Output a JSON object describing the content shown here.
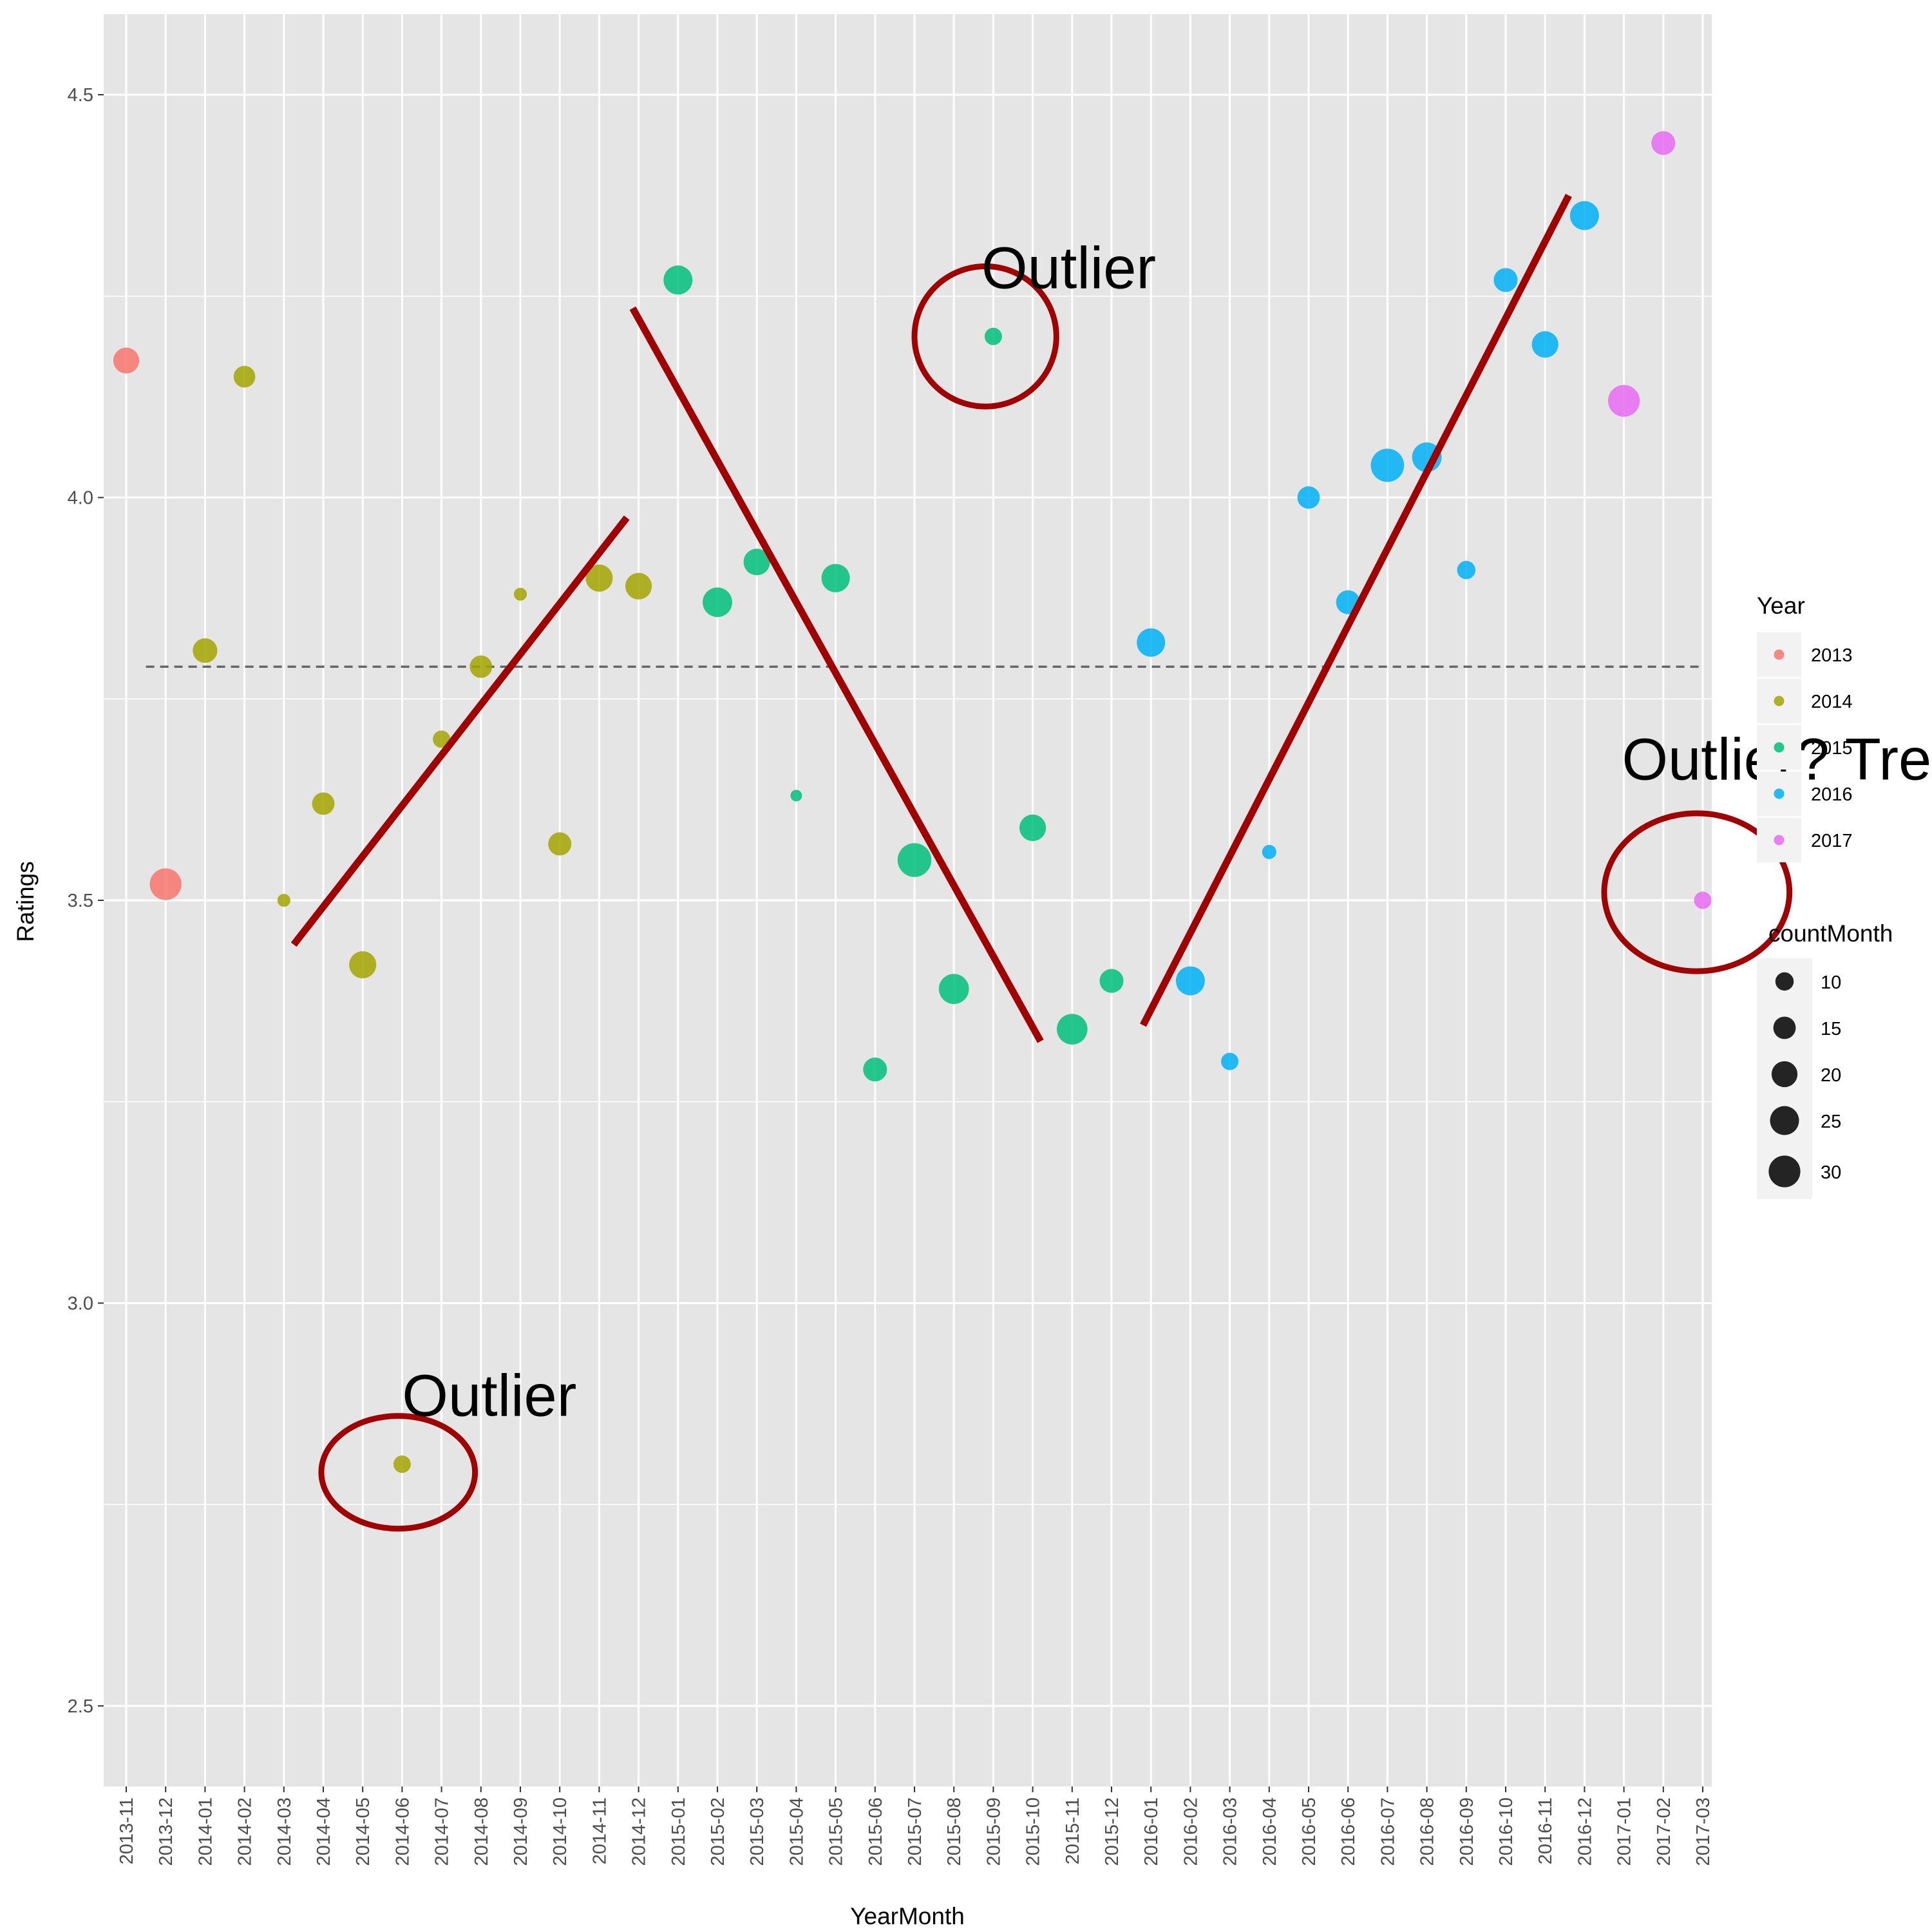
{
  "chart_data": {
    "type": "scatter",
    "xlabel": "YearMonth",
    "ylabel": "Ratings",
    "ylim": [
      2.4,
      4.6
    ],
    "yticks": [
      2.5,
      3.0,
      3.5,
      4.0,
      4.5
    ],
    "ytick_labels": [
      "2.5",
      "3.0",
      "3.5",
      "4.0",
      "4.5"
    ],
    "categories": [
      "2013-11",
      "2013-12",
      "2014-01",
      "2014-02",
      "2014-03",
      "2014-04",
      "2014-05",
      "2014-06",
      "2014-07",
      "2014-08",
      "2014-09",
      "2014-10",
      "2014-11",
      "2014-12",
      "2015-01",
      "2015-02",
      "2015-03",
      "2015-04",
      "2015-05",
      "2015-06",
      "2015-07",
      "2015-08",
      "2015-09",
      "2015-10",
      "2015-11",
      "2015-12",
      "2016-01",
      "2016-02",
      "2016-03",
      "2016-04",
      "2016-05",
      "2016-06",
      "2016-07",
      "2016-08",
      "2016-09",
      "2016-10",
      "2016-11",
      "2016-12",
      "2017-01",
      "2017-02",
      "2017-03"
    ],
    "points": [
      {
        "x": "2013-11",
        "y": 4.17,
        "year": "2013",
        "countMonth": 20
      },
      {
        "x": "2013-12",
        "y": 3.52,
        "year": "2013",
        "countMonth": 30
      },
      {
        "x": "2014-01",
        "y": 3.81,
        "year": "2014",
        "countMonth": 18
      },
      {
        "x": "2014-02",
        "y": 4.15,
        "year": "2014",
        "countMonth": 14
      },
      {
        "x": "2014-03",
        "y": 3.5,
        "year": "2014",
        "countMonth": 5
      },
      {
        "x": "2014-04",
        "y": 3.62,
        "year": "2014",
        "countMonth": 15
      },
      {
        "x": "2014-05",
        "y": 3.42,
        "year": "2014",
        "countMonth": 22
      },
      {
        "x": "2014-06",
        "y": 2.8,
        "year": "2014",
        "countMonth": 9
      },
      {
        "x": "2014-07",
        "y": 3.7,
        "year": "2014",
        "countMonth": 9
      },
      {
        "x": "2014-08",
        "y": 3.79,
        "year": "2014",
        "countMonth": 15
      },
      {
        "x": "2014-09",
        "y": 3.88,
        "year": "2014",
        "countMonth": 5
      },
      {
        "x": "2014-10",
        "y": 3.57,
        "year": "2014",
        "countMonth": 16
      },
      {
        "x": "2014-11",
        "y": 3.9,
        "year": "2014",
        "countMonth": 22
      },
      {
        "x": "2014-12",
        "y": 3.89,
        "year": "2014",
        "countMonth": 21
      },
      {
        "x": "2015-01",
        "y": 4.27,
        "year": "2015",
        "countMonth": 25
      },
      {
        "x": "2015-02",
        "y": 3.87,
        "year": "2015",
        "countMonth": 26
      },
      {
        "x": "2015-03",
        "y": 3.92,
        "year": "2015",
        "countMonth": 21
      },
      {
        "x": "2015-04",
        "y": 3.63,
        "year": "2015",
        "countMonth": 4
      },
      {
        "x": "2015-05",
        "y": 3.9,
        "year": "2015",
        "countMonth": 24
      },
      {
        "x": "2015-06",
        "y": 3.29,
        "year": "2015",
        "countMonth": 17
      },
      {
        "x": "2015-07",
        "y": 3.55,
        "year": "2015",
        "countMonth": 34
      },
      {
        "x": "2015-08",
        "y": 3.39,
        "year": "2015",
        "countMonth": 27
      },
      {
        "x": "2015-09",
        "y": 4.2,
        "year": "2015",
        "countMonth": 9
      },
      {
        "x": "2015-10",
        "y": 3.59,
        "year": "2015",
        "countMonth": 21
      },
      {
        "x": "2015-11",
        "y": 3.34,
        "year": "2015",
        "countMonth": 28
      },
      {
        "x": "2015-12",
        "y": 3.4,
        "year": "2015",
        "countMonth": 17
      },
      {
        "x": "2016-01",
        "y": 3.82,
        "year": "2016",
        "countMonth": 24
      },
      {
        "x": "2016-02",
        "y": 3.4,
        "year": "2016",
        "countMonth": 25
      },
      {
        "x": "2016-03",
        "y": 3.3,
        "year": "2016",
        "countMonth": 9
      },
      {
        "x": "2016-04",
        "y": 3.56,
        "year": "2016",
        "countMonth": 6
      },
      {
        "x": "2016-05",
        "y": 4.0,
        "year": "2016",
        "countMonth": 15
      },
      {
        "x": "2016-06",
        "y": 3.87,
        "year": "2016",
        "countMonth": 17
      },
      {
        "x": "2016-07",
        "y": 4.04,
        "year": "2016",
        "countMonth": 33
      },
      {
        "x": "2016-08",
        "y": 4.05,
        "year": "2016",
        "countMonth": 26
      },
      {
        "x": "2016-09",
        "y": 3.91,
        "year": "2016",
        "countMonth": 10
      },
      {
        "x": "2016-10",
        "y": 4.27,
        "year": "2016",
        "countMonth": 17
      },
      {
        "x": "2016-11",
        "y": 4.19,
        "year": "2016",
        "countMonth": 21
      },
      {
        "x": "2016-12",
        "y": 4.35,
        "year": "2016",
        "countMonth": 25
      },
      {
        "x": "2017-01",
        "y": 4.12,
        "year": "2017",
        "countMonth": 30
      },
      {
        "x": "2017-02",
        "y": 4.44,
        "year": "2017",
        "countMonth": 17
      },
      {
        "x": "2017-03",
        "y": 3.5,
        "year": "2017",
        "countMonth": 9
      }
    ],
    "mean_line": {
      "y": 3.79,
      "style": "dashed",
      "color": "#666666"
    },
    "trend_lines": [
      {
        "x1": 4.25,
        "y1": 3.445,
        "x2": 12.7,
        "y2": 3.975
      },
      {
        "x1": 12.85,
        "y1": 4.235,
        "x2": 23.2,
        "y2": 3.325
      },
      {
        "x1": 25.8,
        "y1": 3.345,
        "x2": 36.6,
        "y2": 4.375
      }
    ],
    "annotations": [
      {
        "text": "Outlier",
        "x": 7.0,
        "y": 2.86,
        "circle": {
          "cx": 6.9,
          "cy": 2.79,
          "rx": 1.95,
          "ry": 0.07
        }
      },
      {
        "text": "Outlier",
        "x": 21.7,
        "y": 4.26,
        "circle": {
          "cx": 21.8,
          "cy": 4.2,
          "rx": 1.8,
          "ry": 0.087
        }
      },
      {
        "text": "Outlier? Trend?",
        "x": 37.95,
        "y": 3.65,
        "circle": {
          "cx": 39.85,
          "cy": 3.51,
          "rx": 2.35,
          "ry": 0.098
        }
      }
    ],
    "legend": {
      "position": "right",
      "color_title": "Year",
      "color_entries": [
        {
          "label": "2013",
          "color": "#F8766D"
        },
        {
          "label": "2014",
          "color": "#A3A500"
        },
        {
          "label": "2015",
          "color": "#00BF7D"
        },
        {
          "label": "2016",
          "color": "#00B0F6"
        },
        {
          "label": "2017",
          "color": "#E76BF3"
        }
      ],
      "size_title": "countMonth",
      "size_entries": [
        {
          "label": "10",
          "value": 10
        },
        {
          "label": "15",
          "value": 15
        },
        {
          "label": "20",
          "value": 20
        },
        {
          "label": "25",
          "value": 25
        },
        {
          "label": "30",
          "value": 30
        }
      ]
    },
    "colors": {
      "panel": "#E5E5E5",
      "grid": "#FFFFFF",
      "trend": "#A00000",
      "annotation_circle": "#A00000"
    }
  }
}
